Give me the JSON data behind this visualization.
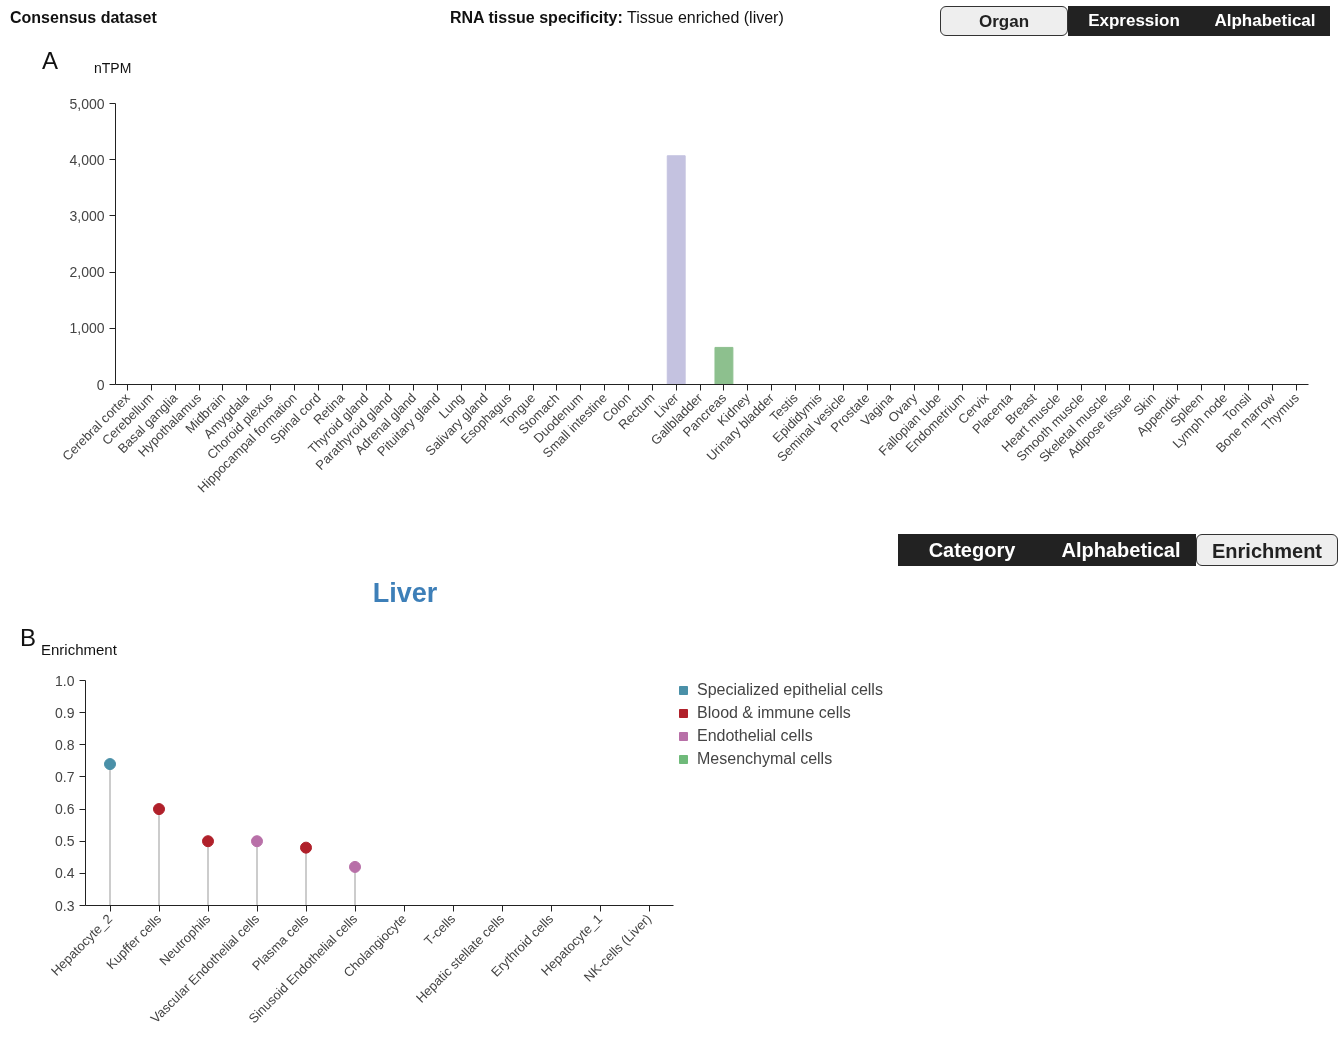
{
  "chart_data": [
    {
      "type": "bar",
      "title": "RNA tissue specificity: Tissue enriched (liver)",
      "ylabel": "nTPM",
      "annotations": [
        "Consensus dataset",
        "A",
        "Organ",
        "Expression",
        "Alphabetical"
      ],
      "categories": [
        "Cerebral cortex",
        "Cerebellum",
        "Basal ganglia",
        "Hypothalamus",
        "Midbrain",
        "Amygdala",
        "Choroid plexus",
        "Hippocampal formation",
        "Spinal cord",
        "Retina",
        "Thyroid gland",
        "Parathyroid gland",
        "Adrenal gland",
        "Pituitary gland",
        "Lung",
        "Salivary gland",
        "Esophagus",
        "Tongue",
        "Stomach",
        "Duodenum",
        "Small intestine",
        "Colon",
        "Rectum",
        "Liver",
        "Gallbladder",
        "Pancreas",
        "Kidney",
        "Urinary bladder",
        "Testis",
        "Epididymis",
        "Seminal vesicle",
        "Prostate",
        "Vagina",
        "Ovary",
        "Fallopian tube",
        "Endometrium",
        "Cervix",
        "Placenta",
        "Breast",
        "Heart muscle",
        "Smooth muscle",
        "Skeletal muscle",
        "Adipose tissue",
        "Skin",
        "Appendix",
        "Spleen",
        "Lymph node",
        "Tonsil",
        "Bone marrow",
        "Thymus"
      ],
      "values": [
        0,
        0,
        0,
        0,
        0,
        0,
        0,
        0,
        0,
        0,
        0,
        0,
        0,
        0,
        0,
        0,
        0,
        0,
        0,
        0,
        0,
        0,
        0,
        4070,
        0,
        660,
        0,
        0,
        0,
        0,
        0,
        0,
        0,
        0,
        0,
        0,
        0,
        0,
        0,
        0,
        0,
        0,
        0,
        0,
        0,
        0,
        0,
        0,
        0,
        0
      ],
      "colors": [
        "#c4c2e0",
        "#c4c2e0",
        "#c4c2e0",
        "#c4c2e0",
        "#c4c2e0",
        "#c4c2e0",
        "#c4c2e0",
        "#c4c2e0",
        "#c4c2e0",
        "#c4c2e0",
        "#c4c2e0",
        "#c4c2e0",
        "#c4c2e0",
        "#c4c2e0",
        "#c4c2e0",
        "#c4c2e0",
        "#c4c2e0",
        "#c4c2e0",
        "#c4c2e0",
        "#c4c2e0",
        "#c4c2e0",
        "#c4c2e0",
        "#c4c2e0",
        "#c4c2e0",
        "#8dc08e",
        "#8dc08e",
        "#c4c2e0",
        "#c4c2e0",
        "#c4c2e0",
        "#c4c2e0",
        "#c4c2e0",
        "#c4c2e0",
        "#c4c2e0",
        "#c4c2e0",
        "#c4c2e0",
        "#c4c2e0",
        "#c4c2e0",
        "#c4c2e0",
        "#c4c2e0",
        "#c4c2e0",
        "#c4c2e0",
        "#c4c2e0",
        "#c4c2e0",
        "#c4c2e0",
        "#c4c2e0",
        "#c4c2e0",
        "#c4c2e0",
        "#c4c2e0",
        "#c4c2e0",
        "#c4c2e0"
      ],
      "ylim": [
        0,
        5000
      ],
      "yticks": [
        0,
        {
          "value": 1000,
          "label": "1,000"
        },
        {
          "value": 2000,
          "label": "2,000"
        },
        {
          "value": 3000,
          "label": "3,000"
        },
        {
          "value": 4000,
          "label": "4,000"
        },
        {
          "value": 5000,
          "label": "5,000"
        }
      ]
    },
    {
      "type": "lollipop",
      "title": "Liver",
      "ylabel": "Enrichment",
      "annotations": [
        "B",
        "Category",
        "Alphabetical",
        "Enrichment"
      ],
      "categories": [
        "Hepatocyte_2",
        "Kupffer cells",
        "Neutrophils",
        "Vascular Endothelial cells",
        "Plasma cells",
        "Sinusoid Endothelial cells",
        "Cholangiocyte",
        "T-cells",
        "Hepatic stellate cells",
        "Erythroid cells",
        "Hepatocyte_1",
        "NK-cells (Liver)"
      ],
      "series": [
        {
          "name": "Specialized epithelial cells",
          "color": "#4a90a8",
          "values": [
            0.74,
            null,
            null,
            null,
            null,
            null,
            null,
            null,
            null,
            null,
            null,
            null
          ]
        },
        {
          "name": "Blood & immune cells",
          "color": "#b0202a",
          "values": [
            null,
            0.6,
            0.5,
            null,
            0.48,
            null,
            null,
            null,
            null,
            null,
            null,
            null
          ]
        },
        {
          "name": "Endothelial cells",
          "color": "#b870a8",
          "values": [
            null,
            null,
            null,
            0.5,
            null,
            0.42,
            null,
            null,
            null,
            null,
            null,
            null
          ]
        },
        {
          "name": "Mesenchymal cells",
          "color": "#6fba7a",
          "values": [
            null,
            null,
            null,
            null,
            null,
            null,
            null,
            null,
            null,
            null,
            null,
            null
          ]
        }
      ],
      "ylim": [
        0.3,
        1.0
      ],
      "yticks": [
        {
          "value": 0.3,
          "label": "0.3"
        },
        {
          "value": 0.4,
          "label": "0.4"
        },
        {
          "value": 0.5,
          "label": "0.5"
        },
        {
          "value": 0.6,
          "label": "0.6"
        },
        {
          "value": 0.7,
          "label": "0.7"
        },
        {
          "value": 0.8,
          "label": "0.8"
        },
        {
          "value": 0.9,
          "label": "0.9"
        },
        {
          "value": 1.0,
          "label": "1.0"
        }
      ],
      "marker": "circle",
      "legend": "right"
    }
  ]
}
